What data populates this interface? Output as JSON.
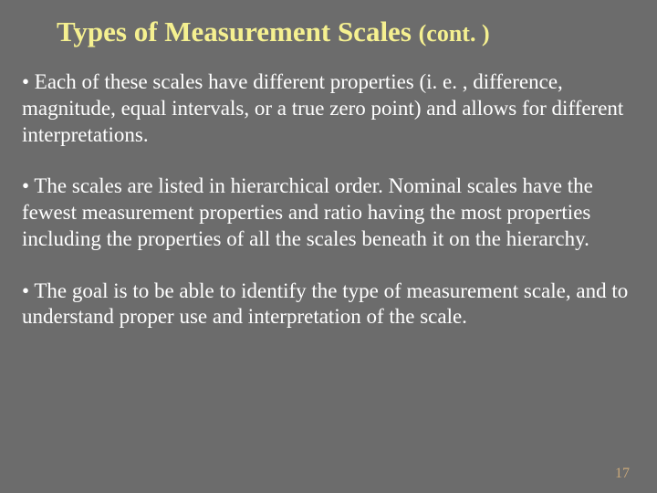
{
  "slide": {
    "title_main": "Types of Measurement Scales",
    "title_cont": "(cont. )",
    "title_color": "#f5f090",
    "title_fontsize": 31,
    "background_color": "#6c6c6c",
    "text_color": "#ffffff",
    "body_fontsize": 23,
    "bullets": [
      "• Each of these scales have different properties (i. e. , difference, magnitude, equal intervals, or a true zero point) and allows for different interpretations.",
      "• The scales are listed in hierarchical order.  Nominal scales have the fewest measurement properties and ratio having the most properties including the properties of all the scales beneath it on the hierarchy.",
      "• The goal is to be able to identify the type of measurement scale, and to understand proper use and interpretation of the scale."
    ],
    "slide_number": "17",
    "slide_number_color": "#c9a87a"
  }
}
